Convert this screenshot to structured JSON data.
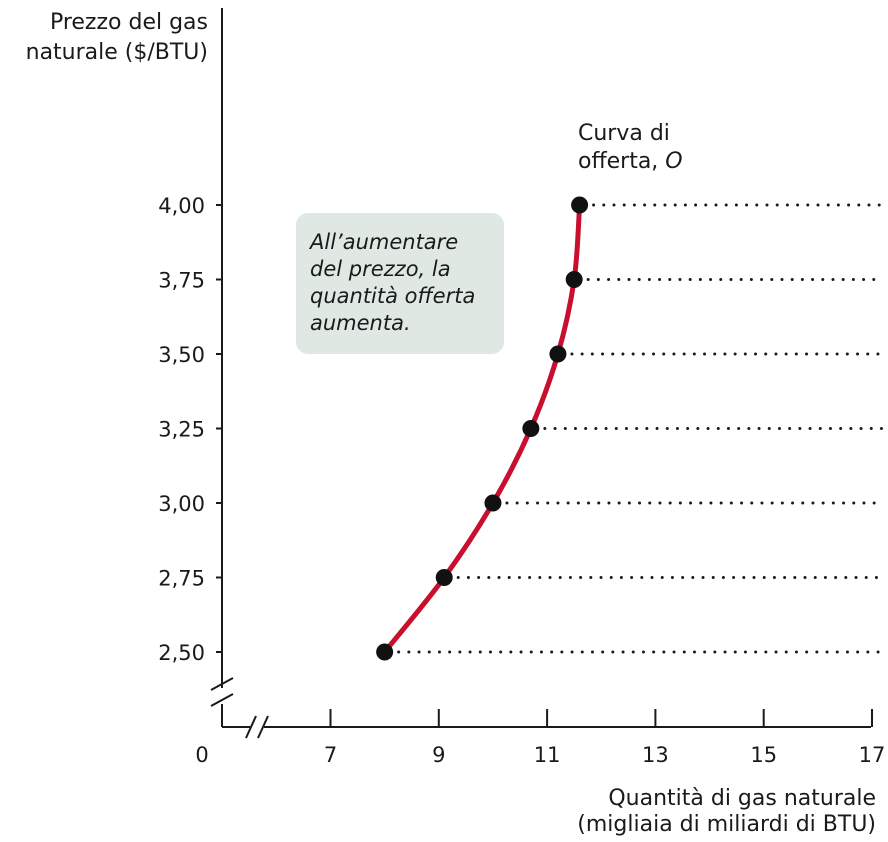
{
  "chart_data": {
    "type": "line",
    "ylabel_lines": [
      "Prezzo del gas",
      "naturale ($/BTU)"
    ],
    "xlabel_lines": [
      "Quantità di gas naturale",
      "(migliaia di miliardi di BTU)"
    ],
    "x_ticks": [
      {
        "value": 0,
        "label": "0"
      },
      {
        "value": 7,
        "label": "7"
      },
      {
        "value": 9,
        "label": "9"
      },
      {
        "value": 11,
        "label": "11"
      },
      {
        "value": 13,
        "label": "13"
      },
      {
        "value": 15,
        "label": "15"
      },
      {
        "value": 17,
        "label": "17"
      }
    ],
    "y_ticks": [
      {
        "value": 2.5,
        "label": "2,50"
      },
      {
        "value": 2.75,
        "label": "2,75"
      },
      {
        "value": 3.0,
        "label": "3,00"
      },
      {
        "value": 3.25,
        "label": "3,25"
      },
      {
        "value": 3.5,
        "label": "3,50"
      },
      {
        "value": 3.75,
        "label": "3,75"
      },
      {
        "value": 4.0,
        "label": "4,00"
      }
    ],
    "xlim": [
      0,
      17
    ],
    "ylim": [
      0,
      4.0
    ],
    "axis_breaks": true,
    "series": [
      {
        "name": "Curva di offerta, O",
        "color": "#c8102e",
        "x": [
          8.0,
          9.1,
          10.0,
          10.7,
          11.2,
          11.5,
          11.6
        ],
        "y": [
          2.5,
          2.75,
          3.0,
          3.25,
          3.5,
          3.75,
          4.0
        ]
      }
    ],
    "series_label_lines": [
      "Curva di",
      "offerta, "
    ],
    "series_label_italic": "O",
    "annotation_lines": [
      "All’aumentare",
      "del prezzo, la",
      "quantità offerta",
      "aumenta."
    ],
    "gridlines": "dotted horizontal from each point to the right edge"
  }
}
